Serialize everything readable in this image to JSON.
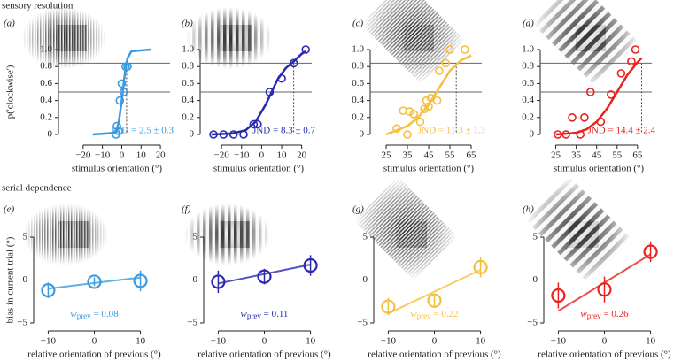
{
  "section_titles": [
    "sensory resolution",
    "serial dependence"
  ],
  "chart_data": [
    {
      "type": "scatter",
      "label": "(a)",
      "ylabel": "p('clockwise')",
      "xlabel": "stimulus orientation (°)",
      "annotation": "JND = 2.5 ± 0.3",
      "color": "#3a9be0",
      "x": [
        -3,
        -2.5,
        -1.5,
        -1,
        0,
        1,
        2,
        3
      ],
      "values": [
        0,
        0.1,
        0.04,
        0.4,
        0.6,
        0.5,
        0.8,
        0.8
      ],
      "fit": {
        "x": [
          -15,
          -3,
          -1.5,
          0,
          1,
          2,
          3,
          5,
          15
        ],
        "values": [
          0,
          0.02,
          0.15,
          0.4,
          0.6,
          0.78,
          0.9,
          0.98,
          1
        ]
      },
      "hlines": [
        0.5,
        0.84
      ],
      "threshold": 2.5,
      "xlim": [
        -30,
        25
      ],
      "ylim": [
        0,
        1
      ],
      "xticks": [
        {
          "value": -20,
          "label": "−20"
        },
        {
          "value": -10,
          "label": "−10"
        },
        0,
        10,
        20
      ],
      "yticks": [
        0,
        0.2,
        0.4,
        0.6,
        0.8,
        {
          "value": 1,
          "label": "1.0"
        }
      ]
    },
    {
      "type": "scatter",
      "label": "(b)",
      "xlabel": "stimulus orientation (°)",
      "annotation": "JND = 8.3 ± 0.7",
      "color": "#2a2ab0",
      "x": [
        -24,
        -19,
        -14,
        -9,
        -4,
        -2,
        4,
        10,
        16,
        22
      ],
      "values": [
        0,
        0,
        0,
        0,
        0.12,
        0.12,
        0.5,
        0.66,
        0.84,
        1
      ],
      "fit": {
        "x": [
          -25,
          -15,
          -8,
          -3,
          2,
          5,
          8,
          12,
          16,
          20,
          22
        ],
        "values": [
          0,
          0.01,
          0.05,
          0.15,
          0.35,
          0.5,
          0.65,
          0.78,
          0.86,
          0.95,
          0.98
        ]
      },
      "hlines": [
        0.5,
        0.84
      ],
      "threshold": 16,
      "xlim": [
        -28,
        25
      ],
      "ylim": [
        0,
        1
      ],
      "xticks": [
        {
          "value": -20,
          "label": "−20"
        },
        {
          "value": -10,
          "label": "−10"
        },
        0,
        10,
        20
      ],
      "yticks": [
        0,
        0.2,
        0.4,
        0.6,
        0.8,
        {
          "value": 1,
          "label": "1.0"
        }
      ]
    },
    {
      "type": "scatter",
      "label": "(c)",
      "xlabel": "stimulus orientation (°)",
      "annotation": "JND = 11.3 ± 1.3",
      "color": "#f5bf3c",
      "x": [
        30,
        33,
        35,
        36,
        38,
        41,
        43,
        44,
        45,
        46,
        49,
        50,
        53,
        55,
        62
      ],
      "values": [
        0.07,
        0.28,
        0,
        0.27,
        0.24,
        0.15,
        0.3,
        0.4,
        0.33,
        0.43,
        0.4,
        0.75,
        0.84,
        1,
        1
      ],
      "fit": {
        "x": [
          25,
          35,
          40,
          45,
          50,
          55,
          60,
          65
        ],
        "values": [
          0,
          0.1,
          0.2,
          0.35,
          0.55,
          0.75,
          0.87,
          0.93
        ]
      },
      "hlines": [
        0.5,
        0.84
      ],
      "threshold": 58,
      "xlim": [
        20,
        70
      ],
      "ylim": [
        0,
        1
      ],
      "xticks": [
        25,
        35,
        45,
        55,
        65
      ],
      "yticks": [
        0,
        0.2,
        0.4,
        0.6,
        0.8,
        {
          "value": 1,
          "label": "1.0"
        }
      ]
    },
    {
      "type": "scatter",
      "label": "(d)",
      "xlabel": "stimulus orientation (°)",
      "annotation": "JND = 14.4 ± 2.4",
      "color": "#e8221e",
      "x": [
        26,
        30,
        33,
        37,
        39,
        42,
        47,
        52,
        57,
        62,
        64
      ],
      "values": [
        0,
        0,
        0.2,
        0,
        0.2,
        0.5,
        0.15,
        0.47,
        0.72,
        0.86,
        1
      ],
      "fit": {
        "x": [
          25,
          35,
          40,
          45,
          50,
          55,
          60,
          65,
          67
        ],
        "values": [
          0,
          0.02,
          0.06,
          0.15,
          0.3,
          0.5,
          0.7,
          0.85,
          0.9
        ]
      },
      "hlines": [
        0.5,
        0.84
      ],
      "threshold": 67,
      "xlim": [
        20,
        72
      ],
      "ylim": [
        0,
        1
      ],
      "xticks": [
        25,
        35,
        45,
        55,
        65
      ],
      "yticks": [
        0,
        0.2,
        0.4,
        0.6,
        0.8,
        {
          "value": 1,
          "label": "1.0"
        }
      ]
    },
    {
      "type": "scatter",
      "label": "(e)",
      "ylabel": "bias in current trial (°)",
      "xlabel": "relative orientation of previous (°)",
      "color": "#3a9be0",
      "annotation": {
        "symbol": "w",
        "subscript": "prev",
        "text": " = 0.08"
      },
      "x": [
        -10,
        0,
        10
      ],
      "values": [
        -1.2,
        -0.2,
        -0.1
      ],
      "errors": [
        0.9,
        0.5,
        1.2
      ],
      "fit": {
        "x": [
          -10,
          10
        ],
        "values": [
          -1.0,
          0.3
        ]
      },
      "hlines": [
        0
      ],
      "xlim": [
        -12,
        12
      ],
      "ylim": [
        -5,
        5
      ],
      "xticks": [
        {
          "value": -10,
          "label": "−10"
        },
        0,
        10
      ],
      "yticks": [
        {
          "value": -5,
          "label": "−5"
        },
        0,
        5
      ]
    },
    {
      "type": "scatter",
      "label": "(f)",
      "xlabel": "relative orientation of previous (°)",
      "color": "#2a2ab0",
      "annotation": {
        "symbol": "w",
        "subscript": "prev",
        "text": " = 0.11"
      },
      "x": [
        -10,
        0,
        10
      ],
      "values": [
        -0.2,
        0.4,
        1.7
      ],
      "errors": [
        1.3,
        0.9,
        1.2
      ],
      "fit": {
        "x": [
          -10,
          10
        ],
        "values": [
          -0.4,
          1.8
        ]
      },
      "hlines": [
        0
      ],
      "xlim": [
        -12,
        12
      ],
      "ylim": [
        -5,
        5
      ],
      "xticks": [
        {
          "value": -10,
          "label": "−10"
        },
        0,
        10
      ],
      "yticks": [
        {
          "value": -5,
          "label": "−5"
        },
        0,
        5
      ]
    },
    {
      "type": "scatter",
      "label": "(g)",
      "xlabel": "relative orientation of previous (°)",
      "color": "#f5bf3c",
      "annotation": {
        "symbol": "w",
        "subscript": "prev",
        "text": " = 0.22"
      },
      "x": [
        -10,
        0,
        10
      ],
      "values": [
        -3.1,
        -2.4,
        1.5
      ],
      "errors": [
        1.0,
        0.6,
        1.2
      ],
      "fit": {
        "x": [
          -10,
          10
        ],
        "values": [
          -3.9,
          1.2
        ]
      },
      "hlines": [
        0
      ],
      "xlim": [
        -12,
        12
      ],
      "ylim": [
        -5,
        5
      ],
      "xticks": [
        {
          "value": -10,
          "label": "−10"
        },
        0,
        10
      ],
      "yticks": [
        {
          "value": -5,
          "label": "−5"
        },
        0,
        5
      ]
    },
    {
      "type": "scatter",
      "label": "(h)",
      "xlabel": "relative orientation of previous (°)",
      "color": "#e8221e",
      "annotation": {
        "symbol": "w",
        "subscript": "prev",
        "text": " = 0.26"
      },
      "x": [
        -10,
        0,
        10
      ],
      "values": [
        -1.8,
        -1.1,
        3.3
      ],
      "errors": [
        1.5,
        1.5,
        1.2
      ],
      "fit": {
        "x": [
          -10,
          10
        ],
        "values": [
          -3.6,
          3.0
        ]
      },
      "hlines": [
        0
      ],
      "xlim": [
        -12,
        12
      ],
      "ylim": [
        -5,
        5
      ],
      "xticks": [
        {
          "value": -10,
          "label": "−10"
        },
        0,
        10
      ],
      "yticks": [
        {
          "value": -5,
          "label": "−5"
        },
        0,
        5
      ]
    }
  ]
}
